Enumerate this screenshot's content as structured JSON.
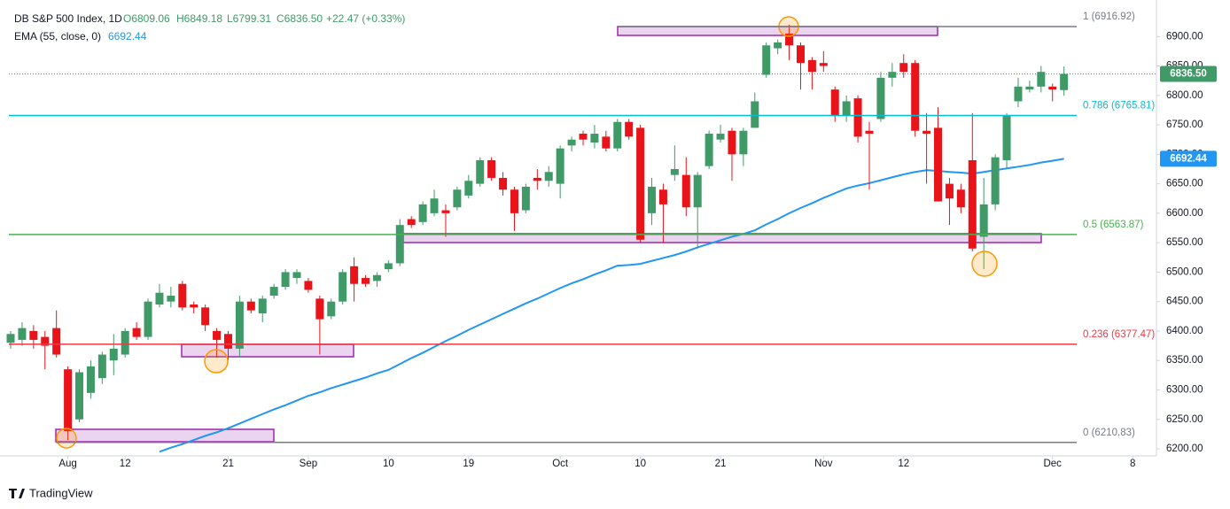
{
  "chart_data": {
    "type": "candlestick",
    "title": "DB S&P 500 Index, 1D",
    "ohlc_legend": [
      "O6809.06",
      "H6849.18",
      "L6799.31",
      "C6836.50"
    ],
    "change": "+22.47 (+0.33%)",
    "categories": [
      null,
      null,
      null,
      null,
      null,
      "Aug",
      null,
      null,
      null,
      null,
      "12",
      null,
      null,
      null,
      null,
      null,
      null,
      null,
      null,
      "21",
      null,
      null,
      null,
      null,
      null,
      null,
      "Sep",
      null,
      null,
      null,
      null,
      null,
      null,
      "10",
      null,
      null,
      null,
      null,
      null,
      null,
      "19",
      null,
      null,
      null,
      null,
      null,
      null,
      null,
      "Oct",
      null,
      null,
      null,
      null,
      null,
      null,
      "10",
      null,
      null,
      null,
      null,
      null,
      null,
      "21",
      null,
      null,
      null,
      null,
      null,
      null,
      null,
      null,
      "Nov",
      null,
      null,
      null,
      null,
      null,
      null,
      "12",
      null,
      null,
      null,
      null,
      null,
      null,
      null,
      null,
      null,
      null,
      null,
      null,
      "Dec",
      null,
      null,
      null,
      null,
      null,
      null,
      "8"
    ],
    "open": [
      6380,
      6385,
      6400,
      6390,
      6405,
      6335,
      6250,
      6295,
      6320,
      6350,
      6360,
      6405,
      6390,
      6445,
      6450,
      6480,
      6445,
      6440,
      6400,
      6395,
      6370,
      6450,
      6430,
      6460,
      6475,
      6490,
      6485,
      6455,
      6425,
      6450,
      6510,
      6490,
      6485,
      6505,
      6515,
      6590,
      6585,
      6600,
      6605,
      6610,
      6630,
      6650,
      6690,
      6660,
      6640,
      6605,
      6660,
      6655,
      6650,
      6715,
      6735,
      6720,
      6730,
      6710,
      6755,
      6745,
      6600,
      6640,
      6665,
      6665,
      6610,
      6680,
      6725,
      6740,
      6700,
      6745,
      6835,
      6880,
      6905,
      6885,
      6860,
      6855,
      6810,
      6765,
      6795,
      6740,
      6760,
      6830,
      6855,
      6855,
      6740,
      6745,
      6650,
      6640,
      6690,
      6560,
      6615,
      6690,
      6790,
      6810,
      6815,
      6815,
      6809.06,
      null,
      null,
      null,
      null,
      null,
      null
    ],
    "high": [
      6400,
      6415,
      6410,
      6400,
      6435,
      6340,
      6335,
      6350,
      6365,
      6395,
      6405,
      6415,
      6455,
      6480,
      6475,
      6485,
      6450,
      6445,
      6405,
      6400,
      6460,
      6455,
      6460,
      6480,
      6505,
      6505,
      6490,
      6460,
      6455,
      6505,
      6525,
      6495,
      6500,
      6520,
      6590,
      6595,
      6620,
      6640,
      6615,
      6645,
      6665,
      6695,
      6695,
      6670,
      6645,
      6650,
      6675,
      6680,
      6715,
      6730,
      6740,
      6750,
      6740,
      6760,
      6760,
      6750,
      6660,
      6650,
      6715,
      6695,
      6670,
      6740,
      6750,
      6745,
      6745,
      6805,
      6890,
      6895,
      6920,
      6890,
      6865,
      6875,
      6815,
      6800,
      6800,
      6755,
      6840,
      6855,
      6870,
      6860,
      6770,
      6780,
      6660,
      6650,
      6770,
      6660,
      6700,
      6770,
      6830,
      6825,
      6850,
      6820,
      6849.18,
      null,
      null,
      null,
      null,
      null,
      null
    ],
    "low": [
      6370,
      6375,
      6370,
      6335,
      6355,
      6215,
      6245,
      6285,
      6310,
      6325,
      6355,
      6385,
      6385,
      6440,
      6440,
      6435,
      6430,
      6400,
      6355,
      6350,
      6355,
      6430,
      6415,
      6455,
      6470,
      6480,
      6465,
      6360,
      6420,
      6445,
      6450,
      6475,
      6475,
      6500,
      6510,
      6575,
      6580,
      6595,
      6560,
      6605,
      6625,
      6645,
      6655,
      6630,
      6570,
      6600,
      6640,
      6645,
      6625,
      6705,
      6715,
      6710,
      6705,
      6705,
      6725,
      6550,
      6580,
      6550,
      6655,
      6595,
      6540,
      6675,
      6720,
      6655,
      6680,
      6745,
      6830,
      6870,
      6860,
      6810,
      6810,
      6840,
      6755,
      6755,
      6720,
      6640,
      6755,
      6815,
      6830,
      6730,
      6650,
      6620,
      6580,
      6600,
      6535,
      6505,
      6605,
      6675,
      6780,
      6805,
      6805,
      6790,
      6799.31,
      null,
      null,
      null,
      null,
      null,
      null
    ],
    "close": [
      6395,
      6405,
      6385,
      6375,
      6360,
      6230,
      6330,
      6340,
      6360,
      6370,
      6400,
      6390,
      6450,
      6465,
      6460,
      6440,
      6440,
      6410,
      6385,
      6370,
      6450,
      6435,
      6455,
      6475,
      6500,
      6500,
      6470,
      6420,
      6450,
      6500,
      6480,
      6480,
      6495,
      6515,
      6580,
      6580,
      6615,
      6625,
      6600,
      6640,
      6655,
      6690,
      6660,
      6640,
      6600,
      6645,
      6655,
      6670,
      6710,
      6725,
      6725,
      6735,
      6710,
      6755,
      6730,
      6555,
      6645,
      6615,
      6675,
      6610,
      6665,
      6735,
      6735,
      6700,
      6740,
      6790,
      6885,
      6890,
      6885,
      6855,
      6840,
      6850,
      6765,
      6790,
      6730,
      6735,
      6830,
      6840,
      6840,
      6740,
      6735,
      6620,
      6625,
      6610,
      6540,
      6615,
      6695,
      6765,
      6815,
      6815,
      6840,
      6810,
      6836.5,
      null,
      null,
      null,
      null,
      null,
      null
    ],
    "up_color": "#3f9a68",
    "down_color": "#e8141a",
    "series": [
      {
        "name": "EMA (55, close, 0)",
        "color": "#2196f3",
        "value_label": "6692.44",
        "values": [
          null,
          null,
          null,
          null,
          null,
          null,
          null,
          null,
          null,
          null,
          null,
          null,
          null,
          6195,
          6202,
          6208,
          6215,
          6222,
          6228,
          6235,
          6243,
          6251,
          6259,
          6267,
          6274,
          6282,
          6290,
          6296,
          6303,
          6309,
          6315,
          6321,
          6328,
          6334,
          6344,
          6354,
          6363,
          6373,
          6383,
          6392,
          6402,
          6411,
          6420,
          6429,
          6438,
          6447,
          6455,
          6464,
          6473,
          6481,
          6488,
          6496,
          6503,
          6511,
          6512,
          6514,
          6519,
          6524,
          6529,
          6535,
          6542,
          6548,
          6554,
          6560,
          6565,
          6571,
          6581,
          6590,
          6600,
          6609,
          6617,
          6626,
          6634,
          6642,
          6647,
          6651,
          6656,
          6661,
          6666,
          6670,
          6673,
          6672,
          6670,
          6669,
          6667,
          6670,
          6673,
          6676,
          6679,
          6682,
          6686,
          6689,
          6692.44,
          null,
          null,
          null,
          null,
          null,
          null
        ]
      }
    ],
    "fib_levels": [
      {
        "value": 6916.92,
        "label": "1 (6916.92)",
        "color": "#787b86"
      },
      {
        "value": 6765.81,
        "label": "0.786 (6765.81)",
        "color": "#00bcd4"
      },
      {
        "value": 6563.87,
        "label": "0.5 (6563.87)",
        "color": "#4caf50"
      },
      {
        "value": 6377.47,
        "label": "0.236 (6377.47)",
        "color": "#f23645"
      },
      {
        "value": 6210.83,
        "label": "0 (6210.83)",
        "color": "#787b86"
      }
    ],
    "price_tags": [
      {
        "value": 6836.5,
        "label": "6836.50",
        "color": "#3f9a68"
      },
      {
        "value": 6692.44,
        "label": "6692.44",
        "color": "#2196f3"
      }
    ],
    "ylim": [
      6188,
      6962
    ],
    "yticks": [
      {
        "value": 6200,
        "label": "6200.00"
      },
      {
        "value": 6250,
        "label": "6250.00"
      },
      {
        "value": 6300,
        "label": "6300.00"
      },
      {
        "value": 6350,
        "label": "6350.00"
      },
      {
        "value": 6400,
        "label": "6400.00"
      },
      {
        "value": 6450,
        "label": "6450.00"
      },
      {
        "value": 6500,
        "label": "6500.00"
      },
      {
        "value": 6550,
        "label": "6550.00"
      },
      {
        "value": 6600,
        "label": "6600.00"
      },
      {
        "value": 6650,
        "label": "6650.00"
      },
      {
        "value": 6700,
        "label": "6700.00"
      },
      {
        "value": 6750,
        "label": "6750.00"
      },
      {
        "value": 6800,
        "label": "6800.00"
      },
      {
        "value": 6850,
        "label": "6850.00"
      },
      {
        "value": 6900,
        "label": "6900.00"
      }
    ],
    "logo": "TradingView"
  }
}
